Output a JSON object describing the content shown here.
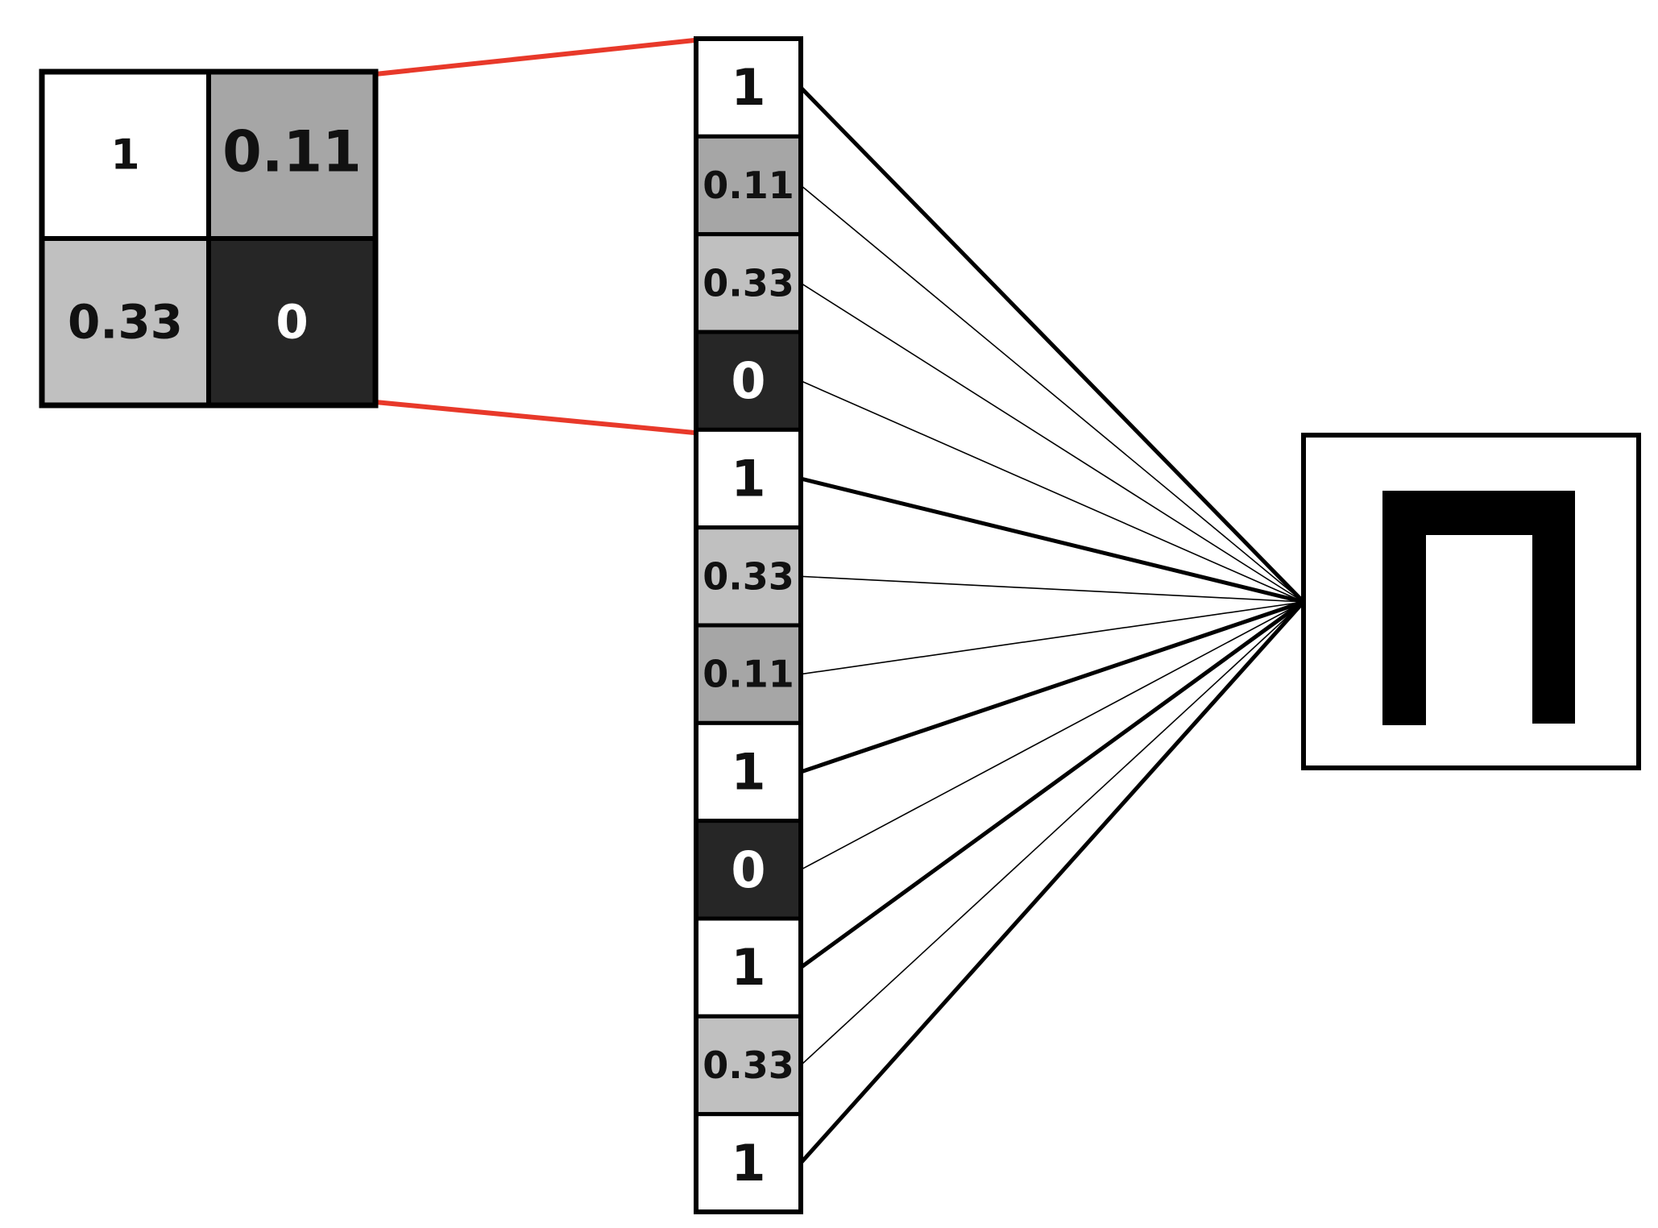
{
  "colors": {
    "white": "#ffffff",
    "light_gray": "#c0c0c0",
    "mid_gray": "#a6a6a6",
    "dark": "#262626",
    "border": "#000000",
    "zoom_line": "#e8392a",
    "text_dark": "#111111",
    "text_light": "#ffffff"
  },
  "grid": {
    "cells": [
      {
        "label": "1",
        "shade": "white"
      },
      {
        "label": "0.11",
        "shade": "mid_gray"
      },
      {
        "label": "0.33",
        "shade": "light_gray"
      },
      {
        "label": "0",
        "shade": "dark"
      }
    ]
  },
  "vector": {
    "cells": [
      {
        "label": "1",
        "shade": "white",
        "strong": true
      },
      {
        "label": "0.11",
        "shade": "mid_gray",
        "strong": false
      },
      {
        "label": "0.33",
        "shade": "light_gray",
        "strong": false
      },
      {
        "label": "0",
        "shade": "dark",
        "strong": false
      },
      {
        "label": "1",
        "shade": "white",
        "strong": true
      },
      {
        "label": "0.33",
        "shade": "light_gray",
        "strong": false
      },
      {
        "label": "0.11",
        "shade": "mid_gray",
        "strong": false
      },
      {
        "label": "1",
        "shade": "white",
        "strong": true
      },
      {
        "label": "0",
        "shade": "dark",
        "strong": false
      },
      {
        "label": "1",
        "shade": "white",
        "strong": true
      },
      {
        "label": "0.33",
        "shade": "light_gray",
        "strong": false
      },
      {
        "label": "1",
        "shade": "white",
        "strong": true
      }
    ]
  },
  "output": {
    "symbol": "Π-shaped glyph"
  }
}
